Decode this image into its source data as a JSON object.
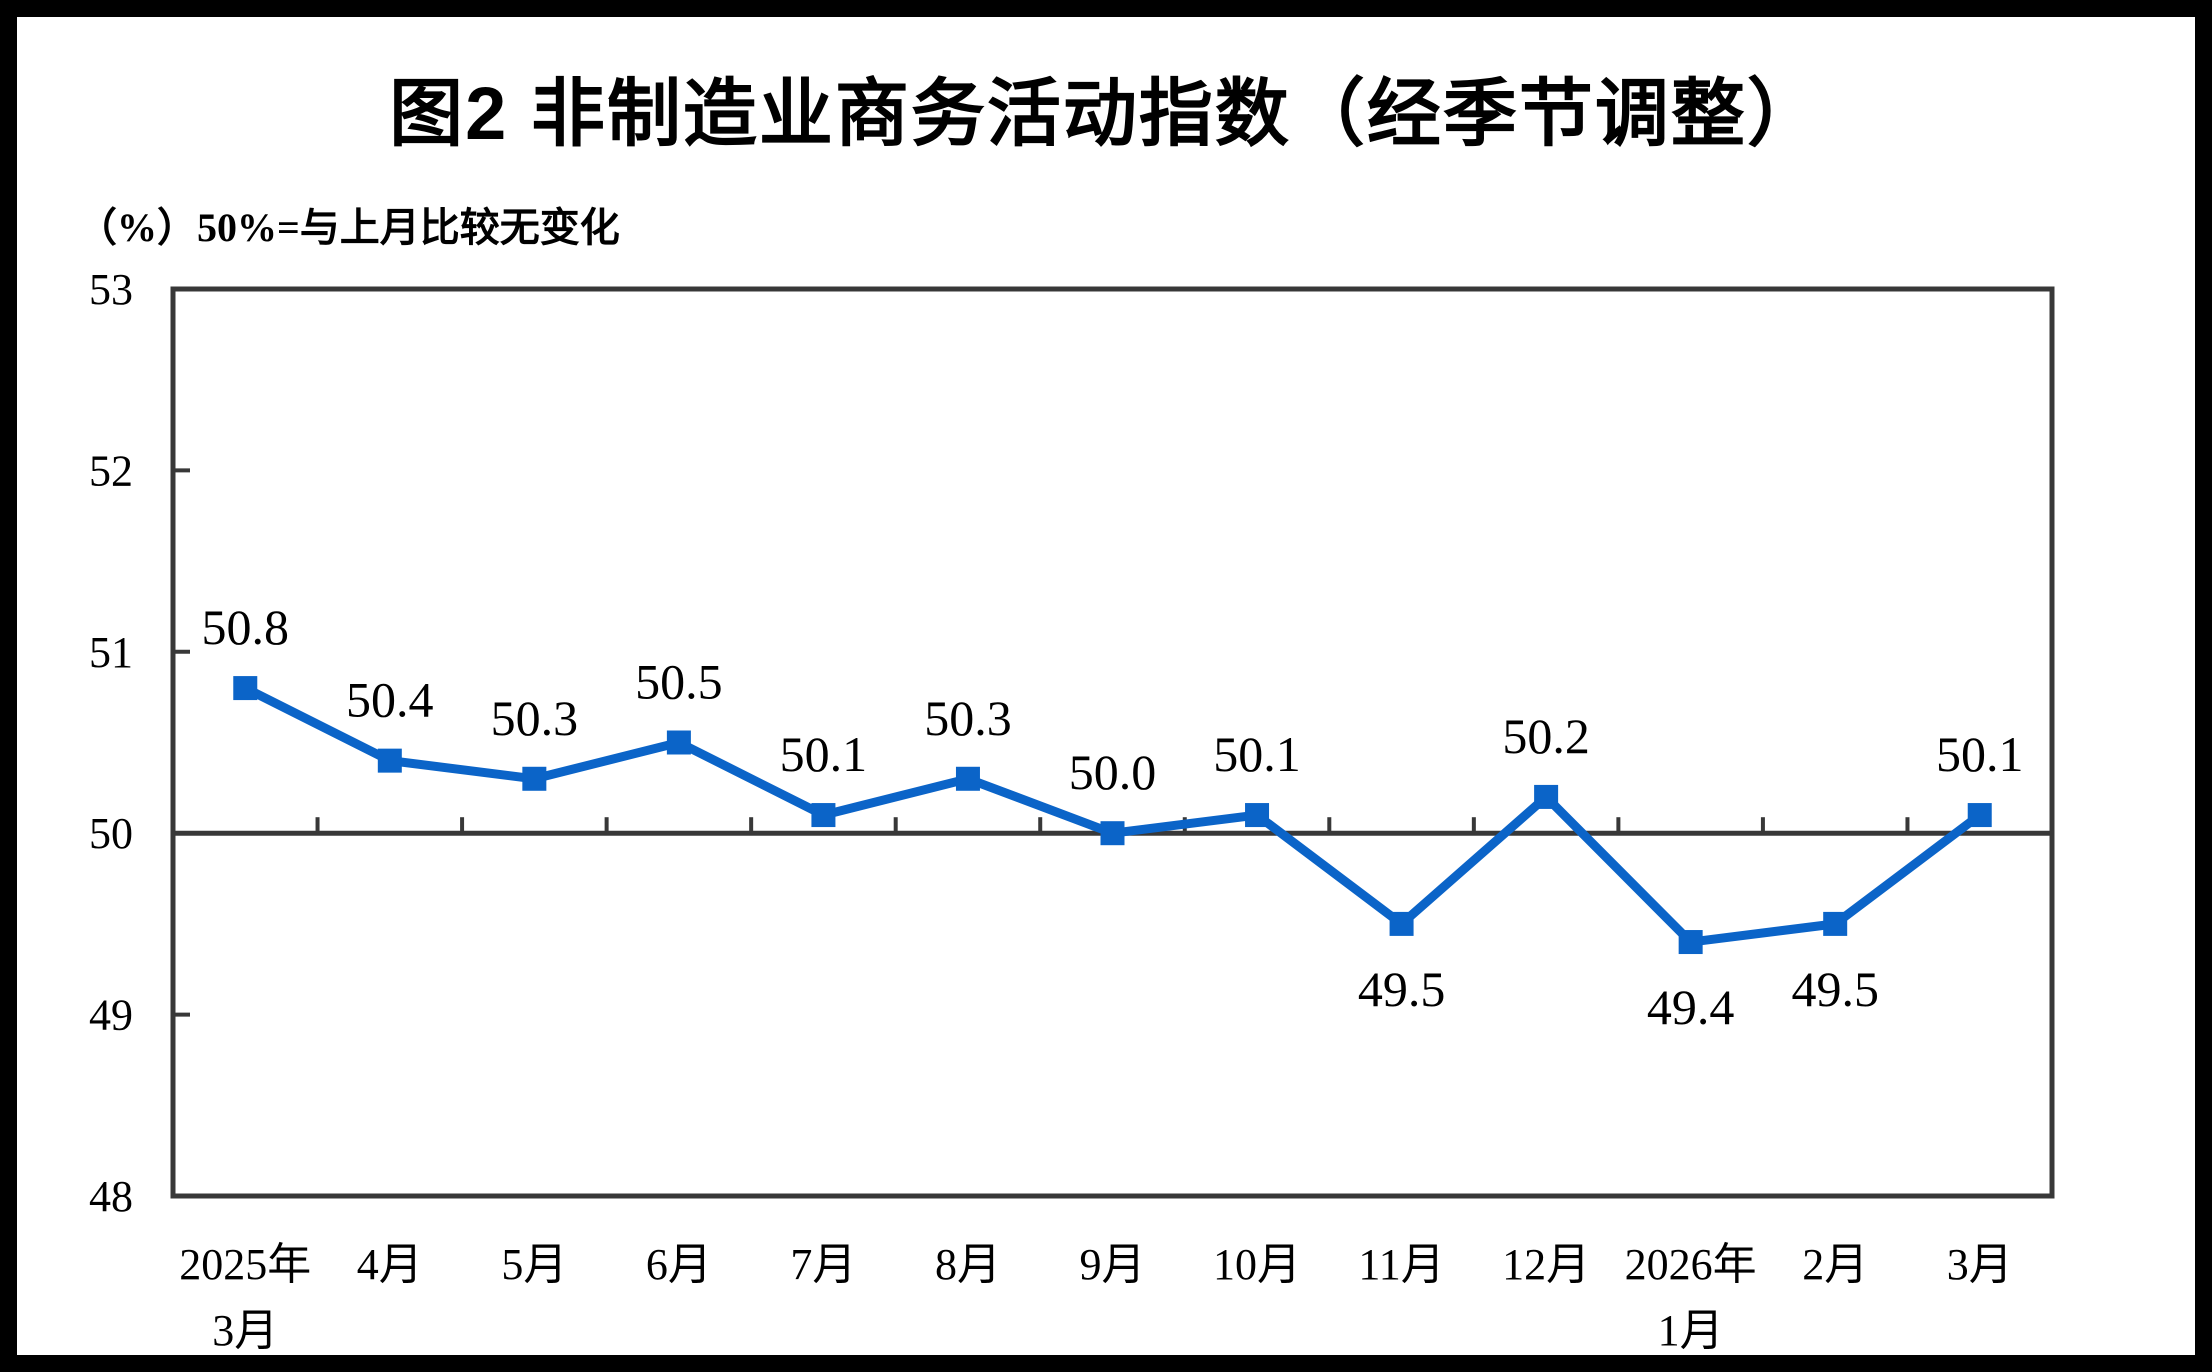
{
  "chart_data": {
    "type": "line",
    "title": "图2 非制造业商务活动指数（经季节调整）",
    "unit_note": "（%）50%=与上月比较无变化",
    "categories": [
      [
        "2025年",
        "3月"
      ],
      [
        "4月"
      ],
      [
        "5月"
      ],
      [
        "6月"
      ],
      [
        "7月"
      ],
      [
        "8月"
      ],
      [
        "9月"
      ],
      [
        "10月"
      ],
      [
        "11月"
      ],
      [
        "12月"
      ],
      [
        "2026年",
        "1月"
      ],
      [
        "2月"
      ],
      [
        "3月"
      ]
    ],
    "values": [
      50.8,
      50.4,
      50.3,
      50.5,
      50.1,
      50.3,
      50.0,
      50.1,
      49.5,
      50.2,
      49.4,
      49.5,
      50.1
    ],
    "point_labels": [
      "50.8",
      "50.4",
      "50.3",
      "50.5",
      "50.1",
      "50.3",
      "50.0",
      "50.1",
      "49.5",
      "50.2",
      "49.4",
      "49.5",
      "50.1"
    ],
    "ylim": [
      48,
      53
    ],
    "yticks": [
      48,
      49,
      50,
      51,
      52,
      53
    ],
    "ytick_labels": [
      "48",
      "49",
      "50",
      "51",
      "52",
      "53"
    ],
    "reference_line": 50,
    "marker": "square",
    "grid": false,
    "legend": false,
    "colors": {
      "line": "#0B64C8",
      "marker": "#0B64C8",
      "axis": "#383838",
      "text": "#000000",
      "background": "#ffffff",
      "frame": "#000000"
    }
  }
}
